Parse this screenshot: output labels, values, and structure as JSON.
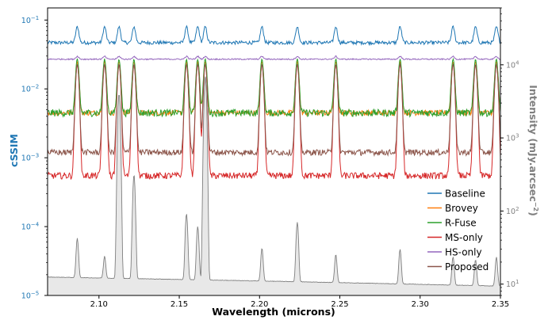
{
  "chart_data": {
    "type": "line",
    "xlabel": "Wavelength (microns)",
    "ylabel_left": "cSSIM",
    "ylabel_right": "Intensity (mJy.arcsec",
    "ylabel_right_exp": "−2",
    "ylabel_right_close": ")",
    "xlim": [
      2.068,
      2.35
    ],
    "ylim_left": [
      1e-05,
      0.15
    ],
    "ylim_right": [
      7,
      60000
    ],
    "yscale": "log",
    "x_ticks": [
      "2.10",
      "2.15",
      "2.20",
      "2.25",
      "2.30",
      "2.35"
    ],
    "x_tick_values": [
      2.1,
      2.15,
      2.2,
      2.25,
      2.3,
      2.35
    ],
    "left_ticks": [
      {
        "base": "10",
        "exp": "−1",
        "value": 0.1
      },
      {
        "base": "10",
        "exp": "−2",
        "value": 0.01
      },
      {
        "base": "10",
        "exp": "−3",
        "value": 0.001
      },
      {
        "base": "10",
        "exp": "−4",
        "value": 0.0001
      },
      {
        "base": "10",
        "exp": "−5",
        "value": 1e-05
      }
    ],
    "right_ticks": [
      {
        "base": "10",
        "exp": "4",
        "value": 10000
      },
      {
        "base": "10",
        "exp": "3",
        "value": 1000
      },
      {
        "base": "10",
        "exp": "2",
        "value": 100
      },
      {
        "base": "10",
        "exp": "1",
        "value": 10
      }
    ],
    "emission_lines": [
      2.0865,
      2.1035,
      2.1125,
      2.1218,
      2.1545,
      2.1615,
      2.1662,
      2.2015,
      2.2235,
      2.2475,
      2.2875,
      2.3205,
      2.3345,
      2.3475
    ],
    "series": [
      {
        "name": "Baseline",
        "axis": "left",
        "color": "#1f77b4",
        "level": 0.047,
        "noise": 0.06,
        "peak_amplitude": 0.7
      },
      {
        "name": "Brovey",
        "axis": "left",
        "color": "#ff7f0e",
        "level": 0.0045,
        "noise": 0.09,
        "peak_amplitude": 4.5
      },
      {
        "name": "R-Fuse",
        "axis": "left",
        "color": "#2ca02c",
        "level": 0.0045,
        "noise": 0.12,
        "peak_amplitude": 5.0
      },
      {
        "name": "MS-only",
        "axis": "left",
        "color": "#d62728",
        "level": 0.00055,
        "noise": 0.11,
        "peak_amplitude": 40
      },
      {
        "name": "HS-only",
        "axis": "left",
        "color": "#9467bd",
        "level": 0.027,
        "noise": 0.02,
        "peak_amplitude": 0.1
      },
      {
        "name": "Proposed",
        "axis": "left",
        "color": "#8c564b",
        "level": 0.0012,
        "noise": 0.1,
        "peak_amplitude": 18
      },
      {
        "name": "Intensity",
        "axis": "right",
        "color": "#7f7f7f",
        "fill": "#e8e8e8",
        "level": 12.5,
        "slope": -0.25,
        "peak_heights": [
          30,
          12,
          4000,
          300,
          80,
          50,
          7000,
          20,
          60,
          15,
          20,
          14,
          12,
          14
        ]
      }
    ],
    "legend": {
      "position": "right",
      "entries": [
        "Baseline",
        "Brovey",
        "R-Fuse",
        "MS-only",
        "HS-only",
        "Proposed"
      ]
    },
    "left_axis_color": "#1f77b4",
    "right_axis_color": "#7f7f7f"
  }
}
